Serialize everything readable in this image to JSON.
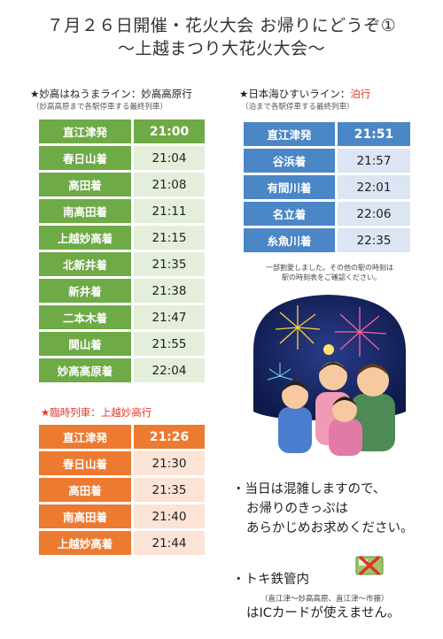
{
  "title": {
    "line1": "７月２６日開催・花火大会 お帰りにどうぞ①",
    "line2": "〜上越まつり大花火大会〜"
  },
  "myoko_line": {
    "star": "★",
    "name": "妙高はねうまライン：妙高高原行",
    "sub": "（妙高高原まで各駅停車する最終列車）",
    "header": {
      "station": "直江津発",
      "time": "21:00"
    },
    "rows": [
      {
        "station": "春日山着",
        "time": "21:04"
      },
      {
        "station": "高田着",
        "time": "21:08"
      },
      {
        "station": "南高田着",
        "time": "21:11"
      },
      {
        "station": "上越妙高着",
        "time": "21:15"
      },
      {
        "station": "北新井着",
        "time": "21:35"
      },
      {
        "station": "新井着",
        "time": "21:38"
      },
      {
        "station": "二本木着",
        "time": "21:47"
      },
      {
        "station": "関山着",
        "time": "21:55"
      },
      {
        "station": "妙高高原着",
        "time": "22:04"
      }
    ]
  },
  "hisui_line": {
    "star": "★",
    "name": "日本海ひすいライン：",
    "dest": "泊行",
    "sub": "（泊まで各駅停車する最終列車）",
    "header": {
      "station": "直江津発",
      "time": "21:51"
    },
    "rows": [
      {
        "station": "谷浜着",
        "time": "21:57"
      },
      {
        "station": "有間川着",
        "time": "22:01"
      },
      {
        "station": "名立着",
        "time": "22:06"
      },
      {
        "station": "糸魚川着",
        "time": "22:35"
      }
    ],
    "note_line1": "一部割愛しました。その他の駅の時刻は",
    "note_line2": "駅の時刻表をご確認ください。"
  },
  "special_train": {
    "star": "★",
    "name": "臨時列車：上越妙高行",
    "header": {
      "station": "直江津発",
      "time": "21:26"
    },
    "rows": [
      {
        "station": "春日山着",
        "time": "21:30"
      },
      {
        "station": "高田着",
        "time": "21:35"
      },
      {
        "station": "南高田着",
        "time": "21:40"
      },
      {
        "station": "上越妙高着",
        "time": "21:44"
      }
    ]
  },
  "info": {
    "crowd_line1": "・当日は混雑しますので、",
    "crowd_line2": "お帰りのきっぷは",
    "crowd_line3": "あらかじめお求めください。",
    "tokitetsu_line1": "・トキ鉄管内",
    "tokitetsu_sub": "（直江津〜妙高高原、直江津〜市振）",
    "tokitetsu_line2": "はICカードが使えません。"
  },
  "colors": {
    "green": "#6eaa46",
    "blue": "#4b86c6",
    "orange": "#ec7a30",
    "red_star": "#e03a2e"
  },
  "icons": {
    "illustration": "fireworks-family-illustration",
    "ic_card": "no-ic-card-icon"
  }
}
